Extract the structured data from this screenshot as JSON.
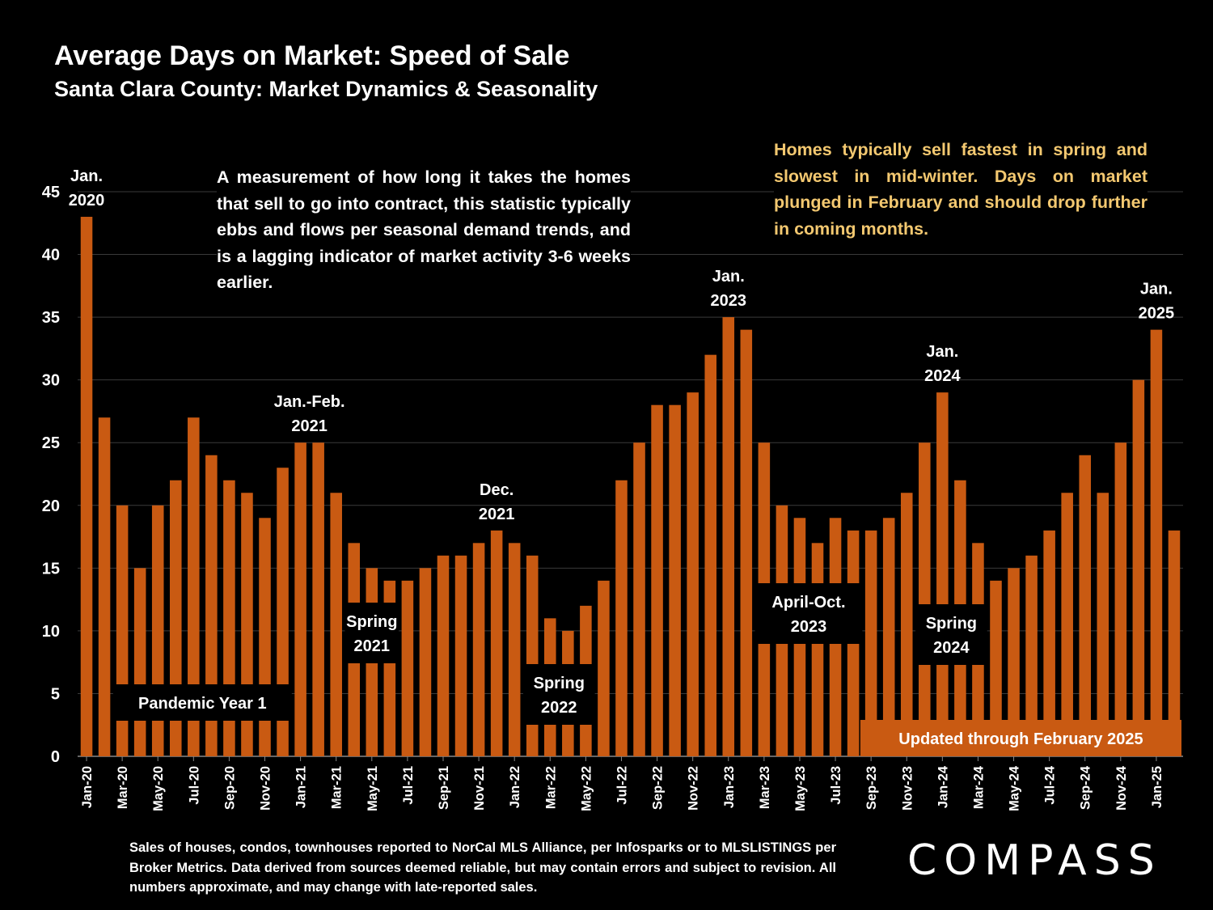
{
  "title": "Average Days on Market: Speed of Sale",
  "subtitle": "Santa Clara County: Market Dynamics & Seasonality",
  "note_left": "A measurement of how long it takes the homes that sell to go into contract, this statistic typically ebbs and flows per seasonal demand trends, and is a lagging indicator of market activity 3-6 weeks earlier.",
  "note_right": "Homes typically sell fastest in spring and slowest in mid-winter. Days on market plunged in February and should drop further in coming months.",
  "footnote": "Sales of houses, condos, townhouses reported to NorCal MLS Alliance, per Infosparks or to MLSLISTINGS per Broker Metrics. Data derived from sources deemed reliable, but may contain errors and subject to revision. All numbers approximate, and may change with late-reported sales.",
  "logo": "COMPASS",
  "colors": {
    "bar": "#c95a12",
    "note_right": "#f3c870",
    "background": "#000000"
  },
  "chart_data": {
    "type": "bar",
    "ylim": [
      0,
      45
    ],
    "yticks": [
      0,
      5,
      10,
      15,
      20,
      25,
      30,
      35,
      40,
      45
    ],
    "grid": true,
    "categories": [
      "Jan-20",
      "Feb-20",
      "Mar-20",
      "Apr-20",
      "May-20",
      "Jun-20",
      "Jul-20",
      "Aug-20",
      "Sep-20",
      "Oct-20",
      "Nov-20",
      "Dec-20",
      "Jan-21",
      "Feb-21",
      "Mar-21",
      "Apr-21",
      "May-21",
      "Jun-21",
      "Jul-21",
      "Aug-21",
      "Sep-21",
      "Oct-21",
      "Nov-21",
      "Dec-21",
      "Jan-22",
      "Feb-22",
      "Mar-22",
      "Apr-22",
      "May-22",
      "Jun-22",
      "Jul-22",
      "Aug-22",
      "Sep-22",
      "Oct-22",
      "Nov-22",
      "Dec-22",
      "Jan-23",
      "Feb-23",
      "Mar-23",
      "Apr-23",
      "May-23",
      "Jun-23",
      "Jul-23",
      "Aug-23",
      "Sep-23",
      "Oct-23",
      "Nov-23",
      "Dec-23",
      "Jan-24",
      "Feb-24",
      "Mar-24",
      "Apr-24",
      "May-24",
      "Jun-24",
      "Jul-24",
      "Aug-24",
      "Sep-24",
      "Oct-24",
      "Nov-24",
      "Dec-24",
      "Jan-25",
      "Feb-25"
    ],
    "xtick_labels": [
      "Jan-20",
      "Mar-20",
      "May-20",
      "Jul-20",
      "Sep-20",
      "Nov-20",
      "Jan-21",
      "Mar-21",
      "May-21",
      "Jul-21",
      "Sep-21",
      "Nov-21",
      "Jan-22",
      "Mar-22",
      "May-22",
      "Jul-22",
      "Sep-22",
      "Nov-22",
      "Jan-23",
      "Mar-23",
      "May-23",
      "Jul-23",
      "Sep-23",
      "Nov-23",
      "Jan-24",
      "Mar-24",
      "May-24",
      "Jul-24",
      "Sep-24",
      "Nov-24",
      "Jan-25"
    ],
    "values": [
      43,
      27,
      20,
      15,
      20,
      22,
      27,
      24,
      22,
      21,
      19,
      23,
      25,
      25,
      21,
      17,
      15,
      14,
      14,
      15,
      16,
      16,
      17,
      18,
      17,
      16,
      11,
      10,
      12,
      14,
      22,
      25,
      28,
      28,
      29,
      32,
      35,
      34,
      25,
      20,
      19,
      17,
      19,
      18,
      18,
      19,
      21,
      25,
      29,
      22,
      17,
      14,
      15,
      16,
      18,
      21,
      24,
      21,
      25,
      30,
      34,
      18
    ],
    "annotations": [
      {
        "lines": [
          "Jan.",
          "2020"
        ],
        "index": 0
      },
      {
        "lines": [
          "Jan.-Feb.",
          "2021"
        ],
        "index": 12.5
      },
      {
        "lines": [
          "Dec.",
          "2021"
        ],
        "index": 23
      },
      {
        "lines": [
          "Jan.",
          "2023"
        ],
        "index": 36
      },
      {
        "lines": [
          "Jan.",
          "2024"
        ],
        "index": 48
      },
      {
        "lines": [
          "Jan.",
          "2025"
        ],
        "index": 60
      }
    ],
    "season_labels": [
      {
        "lines": [
          "Pandemic Year 1"
        ],
        "from": 2,
        "to": 11
      },
      {
        "lines": [
          "Spring",
          "2021"
        ],
        "from": 15,
        "to": 17
      },
      {
        "lines": [
          "Spring",
          "2022"
        ],
        "from": 25,
        "to": 28
      },
      {
        "lines": [
          "April-Oct.",
          "2023"
        ],
        "from": 38,
        "to": 43
      },
      {
        "lines": [
          "Spring",
          "2024"
        ],
        "from": 47,
        "to": 50
      },
      {
        "lines": [
          "Updated through February 2025"
        ],
        "from": 44,
        "to": 61
      }
    ]
  }
}
